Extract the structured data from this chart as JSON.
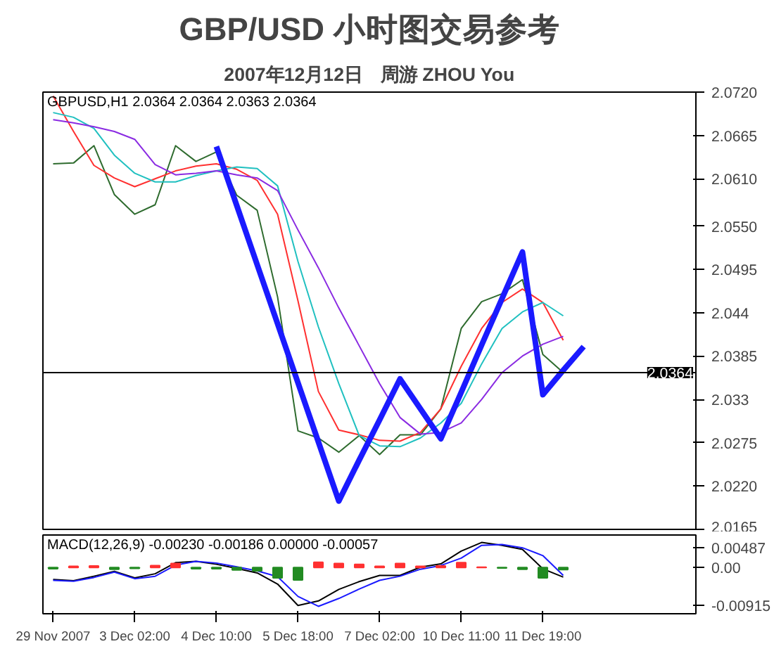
{
  "chart_data": [
    {
      "type": "line",
      "title": "GBP/USD 小时图交易参考",
      "subtitle": "2007年12月12日　周游 ZHOU You",
      "annotations": [
        "GBPUSD,H1  2.0364 2.0364 2.0363 2.0364"
      ],
      "ylim": [
        2.0165,
        2.072
      ],
      "yticks": [
        2.0165,
        {
          "value": 2.022,
          "label": "2.0220"
        },
        2.0275,
        2.033,
        2.0385,
        2.044,
        2.0495,
        {
          "value": 2.055,
          "label": "2.0550"
        },
        {
          "value": 2.061,
          "label": "2.0610"
        },
        2.0665,
        {
          "value": 2.072,
          "label": "2.0720"
        }
      ],
      "tick_labels": "y",
      "grid": false,
      "ref_lines": [
        {
          "axis": "y",
          "value": 2.0364,
          "label": "2.0364",
          "color": "#000000"
        }
      ],
      "series": [
        {
          "color": "#2e6b2e",
          "values": [
            2.0629,
            2.063,
            2.0652,
            2.059,
            2.0565,
            2.0577,
            2.0652,
            2.0632,
            2.0644,
            2.0589,
            2.057,
            2.046,
            2.029,
            2.0281,
            2.0263,
            2.0284,
            2.026,
            2.0285,
            2.0285,
            2.0318,
            2.042,
            2.0454,
            2.0464,
            2.0482,
            2.0387,
            2.0364,
            null,
            null,
            null,
            null,
            null,
            null
          ]
        },
        {
          "color": "#ff3030",
          "values": [
            2.0715,
            2.067,
            2.0627,
            2.0611,
            2.06,
            2.061,
            2.062,
            2.0626,
            2.0629,
            2.0622,
            2.0608,
            2.0565,
            2.0455,
            2.034,
            2.0291,
            2.0285,
            2.0278,
            2.0277,
            2.0288,
            2.0318,
            2.0372,
            2.042,
            2.0453,
            2.047,
            2.0453,
            2.0405,
            null,
            null,
            null,
            null,
            null,
            null
          ]
        },
        {
          "color": "#20c0c0",
          "values": [
            2.0694,
            2.0688,
            2.0674,
            2.064,
            2.0617,
            2.0606,
            2.0606,
            2.0614,
            2.062,
            2.0625,
            2.0623,
            2.0601,
            2.0505,
            2.0422,
            2.035,
            2.0284,
            2.0271,
            2.027,
            2.0281,
            2.03,
            2.0325,
            2.0375,
            2.042,
            2.0441,
            2.0453,
            2.0436,
            null,
            null,
            null,
            null,
            null,
            null
          ]
        },
        {
          "color": "#8a2be2",
          "values": [
            2.0685,
            2.0681,
            2.0676,
            2.067,
            2.066,
            2.0628,
            2.0615,
            2.0617,
            2.062,
            2.0615,
            2.0611,
            2.0595,
            2.0545,
            2.0497,
            2.0446,
            2.0398,
            2.035,
            2.0307,
            2.0286,
            2.0288,
            2.03,
            2.033,
            2.0364,
            2.0385,
            2.04,
            2.041,
            null,
            null,
            null,
            null,
            null,
            null
          ]
        },
        {
          "color": "#1a1aff",
          "values": [
            null,
            null,
            null,
            null,
            null,
            null,
            null,
            null,
            2.0651,
            2.0576,
            2.0501,
            2.0426,
            2.0351,
            2.0276,
            2.0201,
            2.0253,
            2.0304,
            2.0356,
            2.0318,
            2.028,
            2.0339,
            2.0399,
            2.0458,
            2.0517,
            2.0336,
            2.0367,
            2.0397,
            null,
            null,
            null,
            null,
            null
          ]
        }
      ]
    },
    {
      "type": "line",
      "annotations": [
        "MACD(12,26,9) -0.00230 -0.00186 0.00000 -0.00057"
      ],
      "categories": [
        "29 Nov 2007",
        null,
        null,
        null,
        "3 Dec 02:00",
        null,
        null,
        null,
        "4 Dec 10:00",
        null,
        null,
        null,
        "5 Dec 18:00",
        null,
        null,
        null,
        "7 Dec 02:00",
        null,
        null,
        null,
        "10 Dec 11:00",
        null,
        null,
        null,
        "11 Dec 19:00",
        null,
        null,
        null,
        null,
        null,
        null,
        null
      ],
      "ylim": [
        -0.0112,
        0.0079
      ],
      "yticks": [
        0.00487,
        {
          "value": 0,
          "label": "0.00"
        },
        -0.00915
      ],
      "grid": false,
      "series": [
        {
          "type": "bar",
          "values": [
            -0.0003,
            0.0003,
            0.0004,
            -0.0004,
            -0.0002,
            0.0005,
            0.001,
            -0.0003,
            -0.0003,
            -0.0006,
            -0.0008,
            -0.0025,
            -0.003,
            0.0013,
            0.001,
            0.0008,
            0.0003,
            0.001,
            0.0003,
            0.0004,
            0.0012,
            0.0001,
            -0.0001,
            -0.0004,
            -0.0025,
            -0.0005,
            null,
            null,
            null,
            null,
            null,
            null
          ],
          "colors": [
            "#228b22",
            "#ff3030",
            "#ff3030",
            "#228b22",
            "#228b22",
            "#ff3030",
            "#ff3030",
            "#228b22",
            "#228b22",
            "#228b22",
            "#228b22",
            "#228b22",
            "#228b22",
            "#ff3030",
            "#ff3030",
            "#ff3030",
            "#ff3030",
            "#ff3030",
            "#ff3030",
            "#ff3030",
            "#ff3030",
            "#ff3030",
            "#228b22",
            "#228b22",
            "#228b22",
            "#228b22",
            "#228b22",
            "#228b22",
            "#228b22",
            "#228b22",
            "#228b22",
            "#228b22"
          ]
        },
        {
          "color": "#000000",
          "values": [
            -0.0029,
            -0.0032,
            -0.0021,
            -0.0009,
            -0.0025,
            -0.0015,
            0.0012,
            0.0015,
            0.0008,
            -0.0002,
            -0.0013,
            -0.004,
            -0.0092,
            -0.0081,
            -0.0053,
            -0.0034,
            -0.0019,
            -0.0019,
            0.0001,
            0.0009,
            0.004,
            0.0061,
            0.0054,
            0.0044,
            -0.0003,
            -0.0023,
            null,
            null,
            null,
            null,
            null,
            null
          ]
        },
        {
          "color": "#1a1aff",
          "values": [
            -0.0031,
            -0.0033,
            -0.0024,
            -0.0011,
            -0.0027,
            -0.0021,
            0.0006,
            0.0015,
            0.0011,
            0.0002,
            -0.0008,
            -0.0022,
            -0.007,
            -0.0094,
            -0.0075,
            -0.0052,
            -0.0031,
            -0.0021,
            -0.0004,
            0.0005,
            0.0023,
            0.0054,
            0.0056,
            0.0048,
            0.0029,
            -0.0019,
            null,
            null,
            null,
            null,
            null,
            null
          ]
        }
      ]
    }
  ]
}
